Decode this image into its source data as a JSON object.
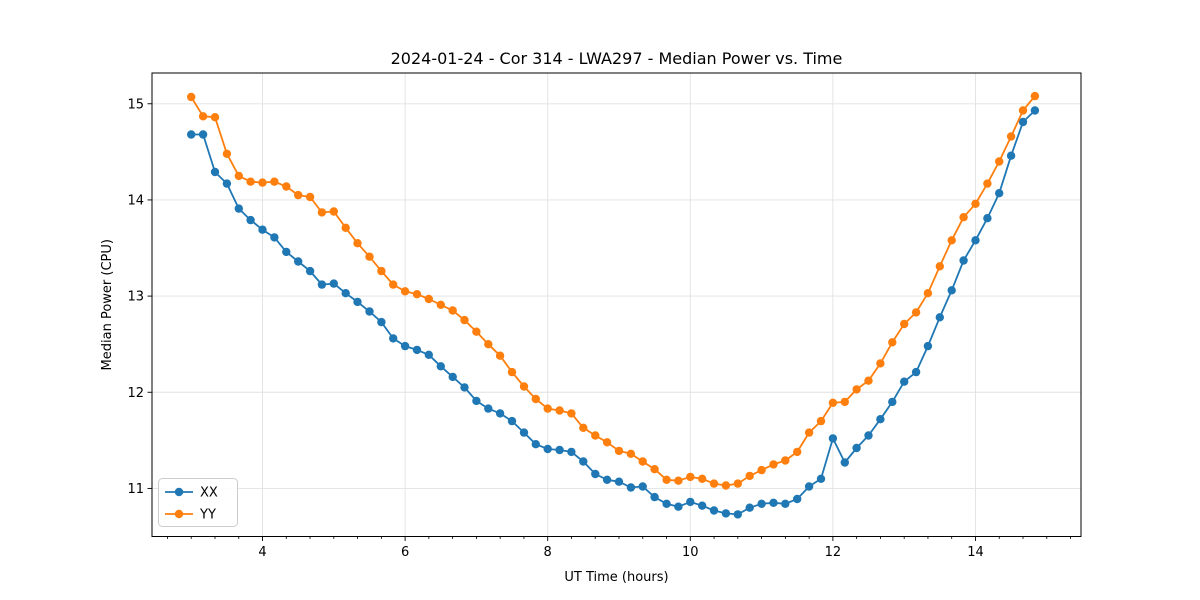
{
  "figure": {
    "background": "#ffffff"
  },
  "chart_data": {
    "type": "line",
    "title": "2024-01-24 - Cor 314 - LWA297 - Median Power vs. Time",
    "xlabel": "UT Time (hours)",
    "ylabel": "Median Power (CPU)",
    "grid": true,
    "grid_color": "#e2e2e2",
    "axis_color": "#000000",
    "legend_position": "lower-left-inside",
    "legend_edge_color": "#cccccc",
    "xlim": [
      2.45,
      15.48
    ],
    "ylim": [
      10.5,
      15.32
    ],
    "x_major_ticks": [
      4,
      6,
      8,
      10,
      12,
      14
    ],
    "x_minor_tick_step": 0.33333,
    "y_major_ticks": [
      11,
      12,
      13,
      14,
      15
    ],
    "marker": "circle",
    "x": [
      3.0,
      3.167,
      3.333,
      3.5,
      3.667,
      3.833,
      4.0,
      4.167,
      4.333,
      4.5,
      4.667,
      4.833,
      5.0,
      5.167,
      5.333,
      5.5,
      5.667,
      5.833,
      6.0,
      6.167,
      6.333,
      6.5,
      6.667,
      6.833,
      7.0,
      7.167,
      7.333,
      7.5,
      7.667,
      7.833,
      8.0,
      8.167,
      8.333,
      8.5,
      8.667,
      8.833,
      9.0,
      9.167,
      9.333,
      9.5,
      9.667,
      9.833,
      10.0,
      10.167,
      10.333,
      10.5,
      10.667,
      10.833,
      11.0,
      11.167,
      11.333,
      11.5,
      11.667,
      11.833,
      12.0,
      12.167,
      12.333,
      12.5,
      12.667,
      12.833,
      13.0,
      13.167,
      13.333,
      13.5,
      13.667,
      13.833,
      14.0,
      14.167,
      14.333,
      14.5,
      14.667,
      14.833
    ],
    "series": [
      {
        "name": "XX",
        "color": "#1f77b4",
        "values": [
          14.68,
          14.68,
          14.29,
          14.17,
          13.91,
          13.79,
          13.69,
          13.61,
          13.46,
          13.36,
          13.26,
          13.12,
          13.13,
          13.03,
          12.94,
          12.84,
          12.73,
          12.56,
          12.48,
          12.44,
          12.39,
          12.27,
          12.16,
          12.05,
          11.91,
          11.83,
          11.78,
          11.7,
          11.58,
          11.46,
          11.41,
          11.4,
          11.38,
          11.28,
          11.15,
          11.09,
          11.07,
          11.01,
          11.02,
          10.91,
          10.84,
          10.81,
          10.86,
          10.82,
          10.77,
          10.74,
          10.73,
          10.8,
          10.84,
          10.85,
          10.84,
          10.89,
          11.02,
          11.1,
          11.52,
          11.27,
          11.42,
          11.55,
          11.72,
          11.9,
          12.11,
          12.21,
          12.48,
          12.78,
          13.06,
          13.37,
          13.58,
          13.81,
          14.07,
          14.46,
          14.81,
          14.93
        ]
      },
      {
        "name": "YY",
        "color": "#ff7f0e",
        "values": [
          15.07,
          14.87,
          14.86,
          14.48,
          14.25,
          14.19,
          14.18,
          14.19,
          14.14,
          14.05,
          14.03,
          13.87,
          13.88,
          13.71,
          13.55,
          13.41,
          13.26,
          13.12,
          13.05,
          13.02,
          12.97,
          12.91,
          12.85,
          12.75,
          12.63,
          12.5,
          12.38,
          12.21,
          12.06,
          11.93,
          11.83,
          11.81,
          11.78,
          11.63,
          11.55,
          11.48,
          11.39,
          11.36,
          11.28,
          11.2,
          11.09,
          11.08,
          11.12,
          11.1,
          11.05,
          11.03,
          11.05,
          11.13,
          11.19,
          11.25,
          11.29,
          11.38,
          11.58,
          11.7,
          11.89,
          11.9,
          12.03,
          12.12,
          12.3,
          12.52,
          12.71,
          12.83,
          13.03,
          13.31,
          13.58,
          13.82,
          13.96,
          14.17,
          14.4,
          14.66,
          14.93,
          15.08
        ]
      }
    ]
  }
}
